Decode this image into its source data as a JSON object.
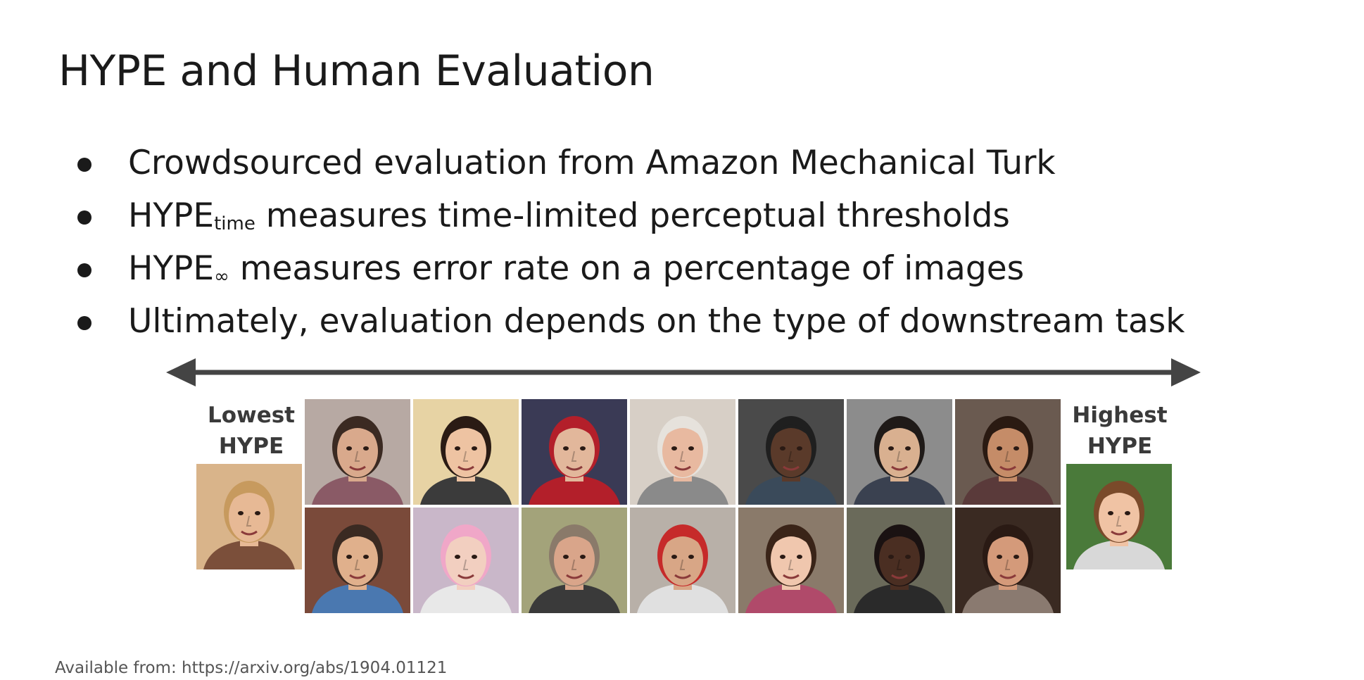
{
  "slide": {
    "title": "HYPE and Human Evaluation",
    "bullets": [
      {
        "main": "Crowdsourced evaluation from Amazon Mechanical Turk"
      },
      {
        "prefix": "HYPE",
        "subscript": "time",
        "rest": " measures time-limited perceptual thresholds"
      },
      {
        "prefix": "HYPE",
        "subscript": "∞",
        "rest": " measures error rate on a percentage of images"
      },
      {
        "main": "Ultimately, evaluation depends on the type of downstream task"
      }
    ],
    "scale": {
      "lowest_line1": "Lowest",
      "lowest_line2": "HYPE",
      "highest_line1": "Highest",
      "highest_line2": "HYPE"
    },
    "footer": "Available from: https://arxiv.org/abs/1904.01121"
  },
  "colors": {
    "text": "#1a1a1a",
    "arrow": "#444444",
    "label": "#3a3a3a"
  },
  "faces": [
    {
      "name": "face-lowest",
      "bg": "#d9b48a",
      "skin": "#e7b995",
      "hair": "#c79a5e",
      "shirt": "#7b4f3a"
    },
    {
      "name": "face-r1-c1",
      "bg": "#b7a9a3",
      "skin": "#d9a98c",
      "hair": "#3b2a22",
      "shirt": "#8a5a66"
    },
    {
      "name": "face-r1-c2",
      "bg": "#e7d3a4",
      "skin": "#eec3a2",
      "hair": "#2a1b14",
      "shirt": "#3b3b3b"
    },
    {
      "name": "face-r1-c3",
      "bg": "#3a3a55",
      "skin": "#e2b79b",
      "hair": "#b31f2a",
      "shirt": "#b31f2a"
    },
    {
      "name": "face-r1-c4",
      "bg": "#d7cfc6",
      "skin": "#e8b9a0",
      "hair": "#e6e2dc",
      "shirt": "#8a8a8a"
    },
    {
      "name": "face-r1-c5",
      "bg": "#4a4a4a",
      "skin": "#5a3a2a",
      "hair": "#1f1f1f",
      "shirt": "#3a4a5a"
    },
    {
      "name": "face-r1-c6",
      "bg": "#8c8c8c",
      "skin": "#d9b090",
      "hair": "#1f1a18",
      "shirt": "#3a4150"
    },
    {
      "name": "face-r1-c7",
      "bg": "#6a5a50",
      "skin": "#c58c68",
      "hair": "#2a1a12",
      "shirt": "#5a3a3a"
    },
    {
      "name": "face-r2-c1",
      "bg": "#7a4a3a",
      "skin": "#e0b08c",
      "hair": "#3a2a22",
      "shirt": "#4a78b0"
    },
    {
      "name": "face-r2-c2",
      "bg": "#c9b7c9",
      "skin": "#f2cfc0",
      "hair": "#f0a7c8",
      "shirt": "#e8e8e8"
    },
    {
      "name": "face-r2-c3",
      "bg": "#a3a37a",
      "skin": "#d9a58a",
      "hair": "#8a7a6a",
      "shirt": "#3a3a3a"
    },
    {
      "name": "face-r2-c4",
      "bg": "#b8b0a8",
      "skin": "#d8a686",
      "hair": "#c62a2a",
      "shirt": "#e0e0e0"
    },
    {
      "name": "face-r2-c5",
      "bg": "#8a7a6a",
      "skin": "#f0c7ae",
      "hair": "#3a2418",
      "shirt": "#b04a6a"
    },
    {
      "name": "face-r2-c6",
      "bg": "#6a6a5a",
      "skin": "#4a2e22",
      "hair": "#1a1212",
      "shirt": "#2a2a2a"
    },
    {
      "name": "face-r2-c7",
      "bg": "#3a2a22",
      "skin": "#d49a7a",
      "hair": "#2a1a14",
      "shirt": "#8a7a70"
    },
    {
      "name": "face-highest",
      "bg": "#4a7a3a",
      "skin": "#f0c3a4",
      "hair": "#7a4a2a",
      "shirt": "#d8d8d8"
    }
  ]
}
